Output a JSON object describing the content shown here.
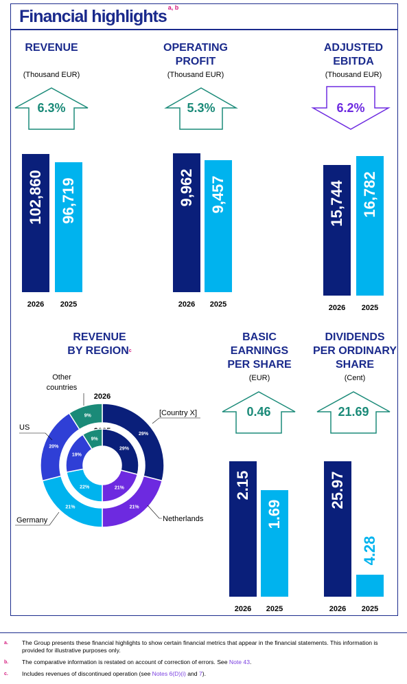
{
  "title": "Financial highlights",
  "title_sup": "a, b",
  "revenue": {
    "heading": "REVENUE",
    "unit": "(Thousand EUR)",
    "change": "6.3%"
  },
  "operating_profit": {
    "heading_1": "OPERATING",
    "heading_2": "PROFIT",
    "unit": "(Thousand EUR)",
    "change": "5.3%"
  },
  "adjusted_ebitda": {
    "heading_1": "ADJUSTED",
    "heading_2": "EBITDA",
    "unit": "(Thousand EUR)",
    "change": "6.2%"
  },
  "region": {
    "heading_1": "REVENUE",
    "heading_2": "BY REGION",
    "sup": "c",
    "year_outer": "2026",
    "year_inner": "2025",
    "labels": {
      "other": "Other countries",
      "other_1": "Other",
      "other_2": "countries",
      "country_x": "[Country X]",
      "us": "US",
      "germany": "Germany",
      "netherlands": "Netherlands"
    }
  },
  "eps": {
    "heading_1": "BASIC",
    "heading_2": "EARNINGS",
    "heading_3": "PER SHARE",
    "unit": "(EUR)",
    "change": "0.46"
  },
  "dividends": {
    "heading_1": "DIVIDENDS",
    "heading_2": "PER ORDINARY",
    "heading_3": "SHARE",
    "unit": "(Cent)",
    "change": "21.69"
  },
  "colors": {
    "navy": "#0a1f7a",
    "cyan": "#00b3ee",
    "teal": "#1a8a78",
    "purple": "#6d2ae0",
    "royal": "#2f3fd6",
    "title": "#1a2a8c",
    "footnote_marker": "#d4187d"
  },
  "chart_data": [
    {
      "type": "bar",
      "title": "REVENUE",
      "unit": "Thousand EUR",
      "categories": [
        "2026",
        "2025"
      ],
      "values": [
        102860,
        96719
      ],
      "labels": [
        "102,860",
        "96,719"
      ],
      "ylim": [
        0,
        110000
      ],
      "change": "6.3%",
      "direction": "up"
    },
    {
      "type": "bar",
      "title": "OPERATING PROFIT",
      "unit": "Thousand EUR",
      "categories": [
        "2026",
        "2025"
      ],
      "values": [
        9962,
        9457
      ],
      "labels": [
        "9,962",
        "9,457"
      ],
      "ylim": [
        0,
        10600
      ],
      "change": "5.3%",
      "direction": "up"
    },
    {
      "type": "bar",
      "title": "ADJUSTED EBITDA",
      "unit": "Thousand EUR",
      "categories": [
        "2026",
        "2025"
      ],
      "values": [
        15744,
        16782
      ],
      "labels": [
        "15,744",
        "16,782"
      ],
      "ylim": [
        0,
        17800
      ],
      "change": "6.2%",
      "direction": "down"
    },
    {
      "type": "pie",
      "title": "REVENUE BY REGION",
      "style": "nested donut",
      "rings": [
        {
          "name": "2026",
          "slices": [
            {
              "region": "[Country X]",
              "value": 29
            },
            {
              "region": "Netherlands",
              "value": 21
            },
            {
              "region": "Germany",
              "value": 21
            },
            {
              "region": "US",
              "value": 20
            },
            {
              "region": "Other countries",
              "value": 9
            }
          ]
        },
        {
          "name": "2025",
          "slices": [
            {
              "region": "[Country X]",
              "value": 29
            },
            {
              "region": "Netherlands",
              "value": 21
            },
            {
              "region": "Germany",
              "value": 22
            },
            {
              "region": "US",
              "value": 19
            },
            {
              "region": "Other countries",
              "value": 9
            }
          ]
        }
      ]
    },
    {
      "type": "bar",
      "title": "BASIC EARNINGS PER SHARE",
      "unit": "EUR",
      "categories": [
        "2026",
        "2025"
      ],
      "values": [
        2.15,
        1.69
      ],
      "labels": [
        "2.15",
        "1.69"
      ],
      "ylim": [
        0,
        2.35
      ],
      "change": "0.46",
      "direction": "up"
    },
    {
      "type": "bar",
      "title": "DIVIDENDS PER ORDINARY SHARE",
      "unit": "Cent",
      "categories": [
        "2026",
        "2025"
      ],
      "values": [
        25.97,
        4.28
      ],
      "labels": [
        "25.97",
        "4.28"
      ],
      "ylim": [
        0,
        28.4
      ],
      "change": "21.69",
      "direction": "up"
    }
  ],
  "footnotes": [
    {
      "marker": "a.",
      "text": "The Group presents these financial highlights to show certain financial metrics that appear in the financial statements. This information is provided for illustrative purposes only."
    },
    {
      "marker": "b.",
      "text": "The comparative information is restated on account of correction of errors. See ",
      "link": "Note 43",
      "after": "."
    },
    {
      "marker": "c.",
      "text": "Includes revenues of discontinued operation (see ",
      "link": "Notes 6(D)(i)",
      "mid": " and ",
      "link2": "7",
      "after": ")."
    }
  ]
}
